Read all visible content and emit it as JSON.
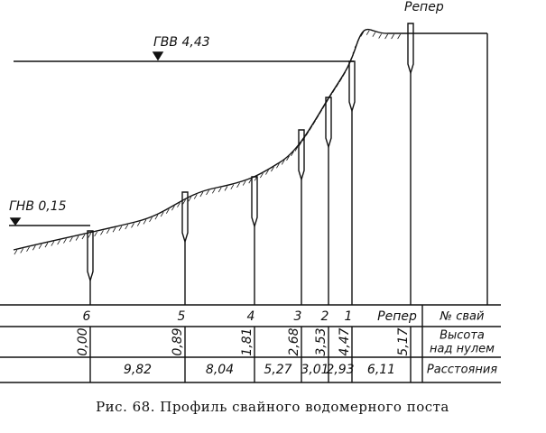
{
  "labels": {
    "high_water": "ГВВ 4,43",
    "low_water": "ГНВ 0,15",
    "benchmark": "Репер"
  },
  "table": {
    "row_headers": [
      [
        "№ свай"
      ],
      [
        "Высота",
        "над нулем"
      ],
      [
        "Расстояния"
      ]
    ],
    "pile_numbers": [
      "6",
      "5",
      "4",
      "3",
      "2",
      "1",
      "Репер"
    ],
    "heights": [
      "0,00",
      "0,89",
      "1,81",
      "2,68",
      "3,53",
      "4,47",
      "5,17"
    ],
    "distances": [
      "9,82",
      "8,04",
      "5,27",
      "3,01",
      "2,93",
      "6,11"
    ]
  },
  "caption": "Рис. 68. Профиль свайного водомерного поста"
}
